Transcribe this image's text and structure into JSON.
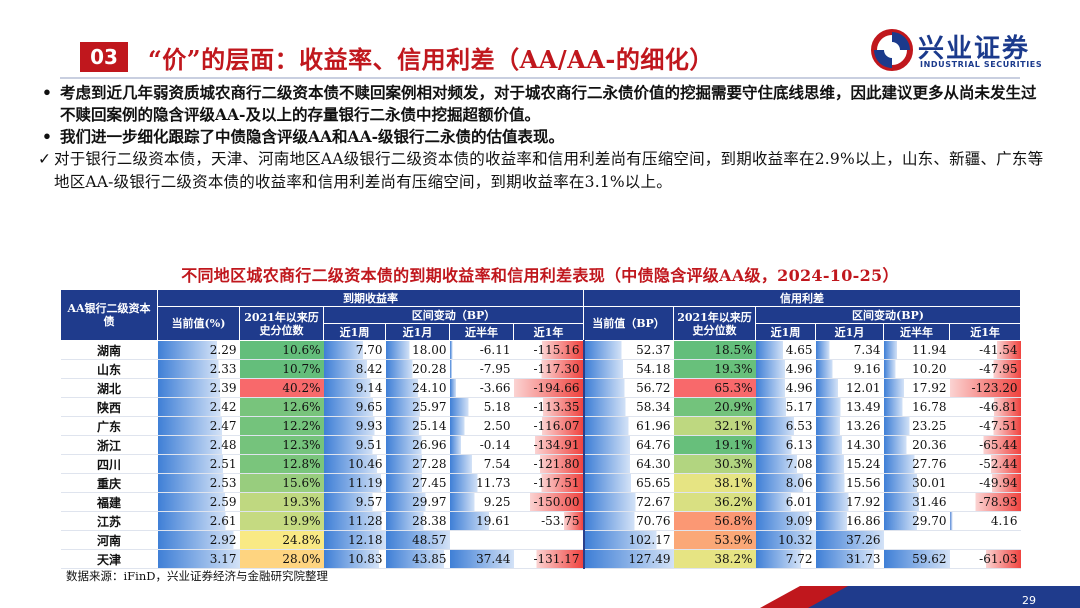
{
  "header": {
    "section_no": "03",
    "title": "“价”的层面：收益率、信用利差（AA/AA-的细化）"
  },
  "logo": {
    "cn": "兴业证券",
    "en": "INDUSTRIAL SECURITIES"
  },
  "bullets": [
    {
      "marker": "•",
      "text": "考虑到近几年弱资质城农商行二级资本债不赎回案例相对频发，对于城农商行二永债价值的挖掘需要守住底线思维，因此建议更多从尚未发生过不赎回案例的隐含评级AA-及以上的存量银行二永债中挖掘超额价值。"
    },
    {
      "marker": "•",
      "text": "我们进一步细化跟踪了中债隐含评级AA和AA-级银行二永债的估值表现。"
    }
  ],
  "check": {
    "marker": "✓",
    "text": "对于银行二级资本债，天津、河南地区AA级银行二级资本债的收益率和信用利差尚有压缩空间，到期收益率在2.9%以上，山东、新疆、广东等地区AA-级银行二级资本债的收益率和信用利差尚有压缩空间，到期收益率在3.1%以上。"
  },
  "table": {
    "title": "不同地区城农商行二级资本债的到期收益率和信用利差表现（中债隐含评级AA级，2024-10-25）",
    "corner": "AA银行二级资本债",
    "group_ytm": "到期收益率",
    "group_spread": "信用利差",
    "col_current_pct": "当前值(%)",
    "col_current_bp": "当前值（BP）",
    "col_pct": "2021年以来历史分位数",
    "col_range_bp": "区间变动（BP）",
    "col_range_bp2": "区间变动(BP)",
    "periods": [
      "近1周",
      "近1月",
      "近半年",
      "近1年"
    ],
    "rows": [
      {
        "region": "湖南",
        "ytm": "2.29",
        "ytm_pct": "10.6%",
        "y1w": "7.70",
        "y1m": "18.00",
        "y6m": "-6.11",
        "y1y": "-115.16",
        "sp": "52.37",
        "sp_pct": "18.5%",
        "s1w": "4.65",
        "s1m": "7.34",
        "s6m": "11.94",
        "s1y": "-41.54"
      },
      {
        "region": "山东",
        "ytm": "2.33",
        "ytm_pct": "10.7%",
        "y1w": "8.42",
        "y1m": "20.28",
        "y6m": "-7.95",
        "y1y": "-117.30",
        "sp": "54.18",
        "sp_pct": "19.3%",
        "s1w": "4.96",
        "s1m": "9.16",
        "s6m": "10.20",
        "s1y": "-47.95"
      },
      {
        "region": "湖北",
        "ytm": "2.39",
        "ytm_pct": "40.2%",
        "y1w": "9.14",
        "y1m": "24.10",
        "y6m": "-3.66",
        "y1y": "-194.66",
        "sp": "56.72",
        "sp_pct": "65.3%",
        "s1w": "4.96",
        "s1m": "12.01",
        "s6m": "17.92",
        "s1y": "-123.20"
      },
      {
        "region": "陕西",
        "ytm": "2.42",
        "ytm_pct": "12.6%",
        "y1w": "9.65",
        "y1m": "25.97",
        "y6m": "5.18",
        "y1y": "-113.35",
        "sp": "58.34",
        "sp_pct": "20.9%",
        "s1w": "5.17",
        "s1m": "13.49",
        "s6m": "16.78",
        "s1y": "-46.81"
      },
      {
        "region": "广东",
        "ytm": "2.47",
        "ytm_pct": "12.2%",
        "y1w": "9.93",
        "y1m": "25.14",
        "y6m": "2.50",
        "y1y": "-116.07",
        "sp": "61.96",
        "sp_pct": "32.1%",
        "s1w": "6.53",
        "s1m": "13.26",
        "s6m": "23.25",
        "s1y": "-47.51"
      },
      {
        "region": "浙江",
        "ytm": "2.48",
        "ytm_pct": "12.3%",
        "y1w": "9.51",
        "y1m": "26.96",
        "y6m": "-0.14",
        "y1y": "-134.91",
        "sp": "64.76",
        "sp_pct": "19.1%",
        "s1w": "6.13",
        "s1m": "14.30",
        "s6m": "20.36",
        "s1y": "-65.44"
      },
      {
        "region": "四川",
        "ytm": "2.51",
        "ytm_pct": "12.8%",
        "y1w": "10.46",
        "y1m": "27.28",
        "y6m": "7.54",
        "y1y": "-121.80",
        "sp": "64.30",
        "sp_pct": "30.3%",
        "s1w": "7.08",
        "s1m": "15.24",
        "s6m": "27.76",
        "s1y": "-52.44"
      },
      {
        "region": "重庆",
        "ytm": "2.53",
        "ytm_pct": "15.6%",
        "y1w": "11.19",
        "y1m": "27.45",
        "y6m": "11.73",
        "y1y": "-117.51",
        "sp": "65.65",
        "sp_pct": "38.1%",
        "s1w": "8.06",
        "s1m": "15.56",
        "s6m": "30.01",
        "s1y": "-49.94"
      },
      {
        "region": "福建",
        "ytm": "2.59",
        "ytm_pct": "19.3%",
        "y1w": "9.57",
        "y1m": "29.97",
        "y6m": "9.25",
        "y1y": "-150.00",
        "sp": "72.67",
        "sp_pct": "36.2%",
        "s1w": "6.01",
        "s1m": "17.92",
        "s6m": "31.46",
        "s1y": "-78.93"
      },
      {
        "region": "江苏",
        "ytm": "2.61",
        "ytm_pct": "19.9%",
        "y1w": "11.28",
        "y1m": "28.38",
        "y6m": "19.61",
        "y1y": "-53.75",
        "sp": "70.76",
        "sp_pct": "56.8%",
        "s1w": "9.09",
        "s1m": "16.86",
        "s6m": "29.70",
        "s1y": "4.16"
      },
      {
        "region": "河南",
        "ytm": "2.92",
        "ytm_pct": "24.8%",
        "y1w": "12.18",
        "y1m": "48.57",
        "y6m": "",
        "y1y": "",
        "sp": "102.17",
        "sp_pct": "53.9%",
        "s1w": "10.32",
        "s1m": "37.26",
        "s6m": "",
        "s1y": ""
      },
      {
        "region": "天津",
        "ytm": "3.17",
        "ytm_pct": "28.0%",
        "y1w": "10.83",
        "y1m": "43.85",
        "y6m": "37.44",
        "y1y": "-131.17",
        "sp": "127.49",
        "sp_pct": "38.2%",
        "s1w": "7.72",
        "s1m": "31.73",
        "s6m": "59.62",
        "s1y": "-61.03"
      }
    ]
  },
  "footer": {
    "source": "数据来源：iFinD，兴业证券经济与金融研究院整理",
    "page": "29"
  },
  "colors": {
    "brand_red": "#c0171d",
    "brand_blue": "#1f3b8c"
  }
}
